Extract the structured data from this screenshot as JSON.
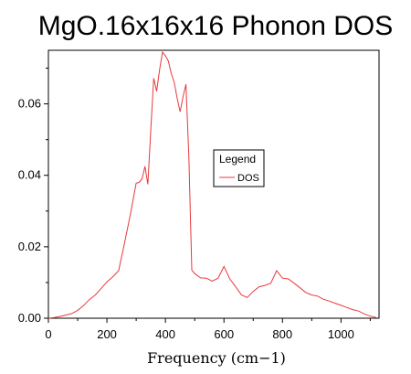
{
  "chart_data": {
    "type": "line",
    "title": "MgO.16x16x16 Phonon DOS",
    "xlabel": "Frequency (cm−1)",
    "ylabel": "",
    "xlim": [
      0,
      1130
    ],
    "ylim": [
      0,
      0.075
    ],
    "x_ticks": [
      0,
      200,
      400,
      600,
      800,
      1000
    ],
    "y_ticks": [
      0.0,
      0.02,
      0.04,
      0.06
    ],
    "x_tick_labels": [
      "0",
      "200",
      "400",
      "600",
      "800",
      "1000"
    ],
    "y_tick_labels": [
      "0.00",
      "0.02",
      "0.04",
      "0.06"
    ],
    "grid": false,
    "legend": {
      "title": "Legend",
      "placement": "center-right"
    },
    "series": [
      {
        "name": "DOS",
        "color": "#e8393c",
        "points": [
          [
            0,
            0.0
          ],
          [
            20,
            0.0002
          ],
          [
            40,
            0.0005
          ],
          [
            60,
            0.0009
          ],
          [
            80,
            0.0013
          ],
          [
            100,
            0.0022
          ],
          [
            120,
            0.0035
          ],
          [
            140,
            0.0052
          ],
          [
            160,
            0.0065
          ],
          [
            180,
            0.0083
          ],
          [
            200,
            0.0102
          ],
          [
            220,
            0.0116
          ],
          [
            240,
            0.0133
          ],
          [
            260,
            0.021
          ],
          [
            280,
            0.029
          ],
          [
            300,
            0.0378
          ],
          [
            310,
            0.038
          ],
          [
            320,
            0.039
          ],
          [
            330,
            0.0425
          ],
          [
            340,
            0.0375
          ],
          [
            350,
            0.0528
          ],
          [
            360,
            0.0672
          ],
          [
            370,
            0.0635
          ],
          [
            380,
            0.0695
          ],
          [
            390,
            0.0745
          ],
          [
            400,
            0.0735
          ],
          [
            410,
            0.072
          ],
          [
            420,
            0.0685
          ],
          [
            430,
            0.066
          ],
          [
            440,
            0.0615
          ],
          [
            450,
            0.0578
          ],
          [
            460,
            0.062
          ],
          [
            470,
            0.0655
          ],
          [
            480,
            0.045
          ],
          [
            490,
            0.0135
          ],
          [
            500,
            0.0125
          ],
          [
            520,
            0.0113
          ],
          [
            540,
            0.0112
          ],
          [
            560,
            0.0104
          ],
          [
            580,
            0.0112
          ],
          [
            600,
            0.0145
          ],
          [
            620,
            0.011
          ],
          [
            640,
            0.0088
          ],
          [
            660,
            0.0065
          ],
          [
            680,
            0.0058
          ],
          [
            700,
            0.0075
          ],
          [
            720,
            0.0088
          ],
          [
            740,
            0.0092
          ],
          [
            760,
            0.0098
          ],
          [
            780,
            0.0133
          ],
          [
            800,
            0.0112
          ],
          [
            820,
            0.011
          ],
          [
            840,
            0.0098
          ],
          [
            860,
            0.0085
          ],
          [
            880,
            0.0072
          ],
          [
            900,
            0.0065
          ],
          [
            920,
            0.0062
          ],
          [
            940,
            0.0053
          ],
          [
            960,
            0.0048
          ],
          [
            980,
            0.0042
          ],
          [
            1000,
            0.0036
          ],
          [
            1020,
            0.003
          ],
          [
            1040,
            0.0024
          ],
          [
            1060,
            0.002
          ],
          [
            1080,
            0.0012
          ],
          [
            1100,
            0.0006
          ],
          [
            1120,
            0.0002
          ]
        ]
      }
    ]
  }
}
